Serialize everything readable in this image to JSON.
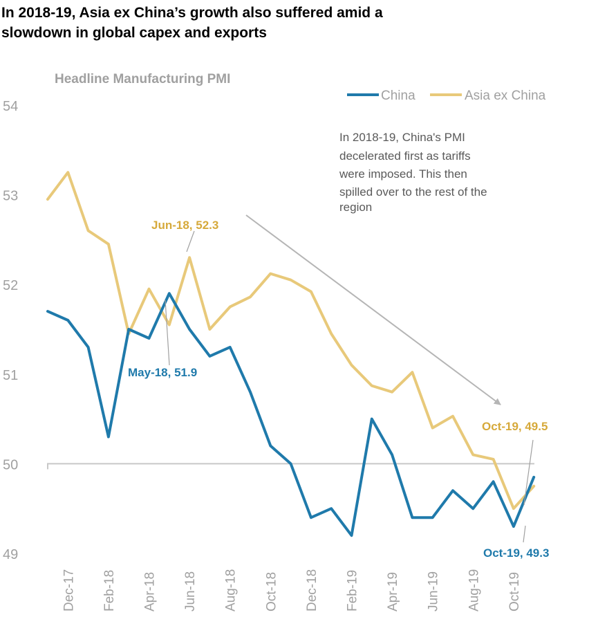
{
  "page": {
    "title_line1": "In 2018-19, Asia ex China’s growth also suffered amid a",
    "title_line2": "slowdown in global capex and exports"
  },
  "chart_data": {
    "type": "line",
    "title": "Headline Manufacturing PMI",
    "xlabel": "",
    "ylabel": "",
    "ylim": [
      49,
      54
    ],
    "yticks": [
      49,
      50,
      51,
      52,
      53,
      54
    ],
    "x": [
      "Nov-17",
      "Dec-17",
      "Jan-18",
      "Feb-18",
      "Mar-18",
      "Apr-18",
      "May-18",
      "Jun-18",
      "Jul-18",
      "Aug-18",
      "Sep-18",
      "Oct-18",
      "Nov-18",
      "Dec-18",
      "Jan-19",
      "Feb-19",
      "Mar-19",
      "Apr-19",
      "May-19",
      "Jun-19",
      "Jul-19",
      "Aug-19",
      "Sep-19",
      "Oct-19",
      "Nov-19"
    ],
    "x_tick_labels": [
      "Dec-17",
      "Feb-18",
      "Apr-18",
      "Jun-18",
      "Aug-18",
      "Oct-18",
      "Dec-18",
      "Feb-19",
      "Apr-19",
      "Jun-19",
      "Aug-19",
      "Oct-19"
    ],
    "x_tick_indices": [
      1,
      3,
      5,
      7,
      9,
      11,
      13,
      15,
      17,
      19,
      21,
      23
    ],
    "series": [
      {
        "name": "China",
        "color": "#1f7aab",
        "values": [
          51.7,
          51.6,
          51.3,
          50.3,
          51.5,
          51.4,
          51.9,
          51.5,
          51.2,
          51.3,
          50.8,
          50.2,
          50.0,
          49.4,
          49.5,
          49.2,
          50.5,
          50.1,
          49.4,
          49.4,
          49.7,
          49.5,
          49.8,
          49.3,
          49.85
        ]
      },
      {
        "name": "Asia ex China",
        "color": "#e8c97a",
        "values": [
          52.95,
          53.25,
          52.6,
          52.45,
          51.45,
          51.95,
          51.55,
          52.3,
          51.5,
          51.75,
          51.86,
          52.12,
          52.05,
          51.92,
          51.45,
          51.1,
          50.87,
          50.8,
          51.02,
          50.4,
          50.53,
          50.1,
          50.05,
          49.5,
          49.75
        ]
      }
    ],
    "legend": [
      "China",
      "Asia ex China"
    ],
    "legend_position": "top-right",
    "reference_line": 50,
    "annotations": {
      "note_lines": [
        "In 2018-19, China's PMI",
        "decelerated first as tariffs",
        "were imposed. This then",
        "spilled over to the rest of the",
        "region"
      ],
      "asia_jun18": "Jun-18, 52.3",
      "china_may18": "May-18, 51.9",
      "asia_oct19": "Oct-19, 49.5",
      "china_oct19": "Oct-19, 49.3"
    },
    "colors": {
      "china": "#1f7aab",
      "asia": "#e8c97a",
      "asia_label": "#d6a93a",
      "china_label": "#1f7aab",
      "axis_text": "#a0a0a0",
      "arrow": "#b5b5b5"
    }
  }
}
